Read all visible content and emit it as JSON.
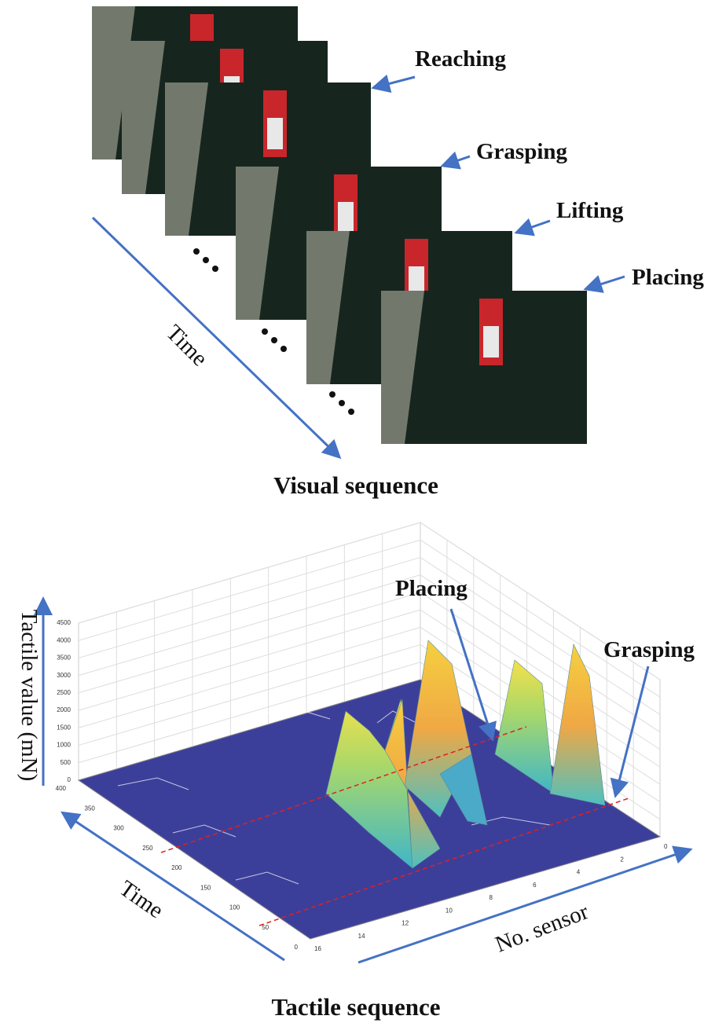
{
  "visual": {
    "stages": [
      "Reaching",
      "Grasping",
      "Lifting",
      "Placing"
    ],
    "time_label": "Time",
    "caption": "Visual sequence"
  },
  "tactile": {
    "annotations": [
      "Placing",
      "Grasping"
    ],
    "z_label": "Tactile value (mN)",
    "z_ticks": [
      0,
      500,
      1000,
      1500,
      2000,
      2500,
      3000,
      3500,
      4000,
      4500
    ],
    "time_label": "Time",
    "time_ticks": [
      400,
      350,
      300,
      250,
      200,
      150,
      100,
      50,
      0
    ],
    "sensor_label": "No. sensor",
    "sensor_ticks": [
      16,
      14,
      12,
      10,
      8,
      6,
      4,
      2,
      0
    ],
    "caption": "Tactile sequence"
  }
}
